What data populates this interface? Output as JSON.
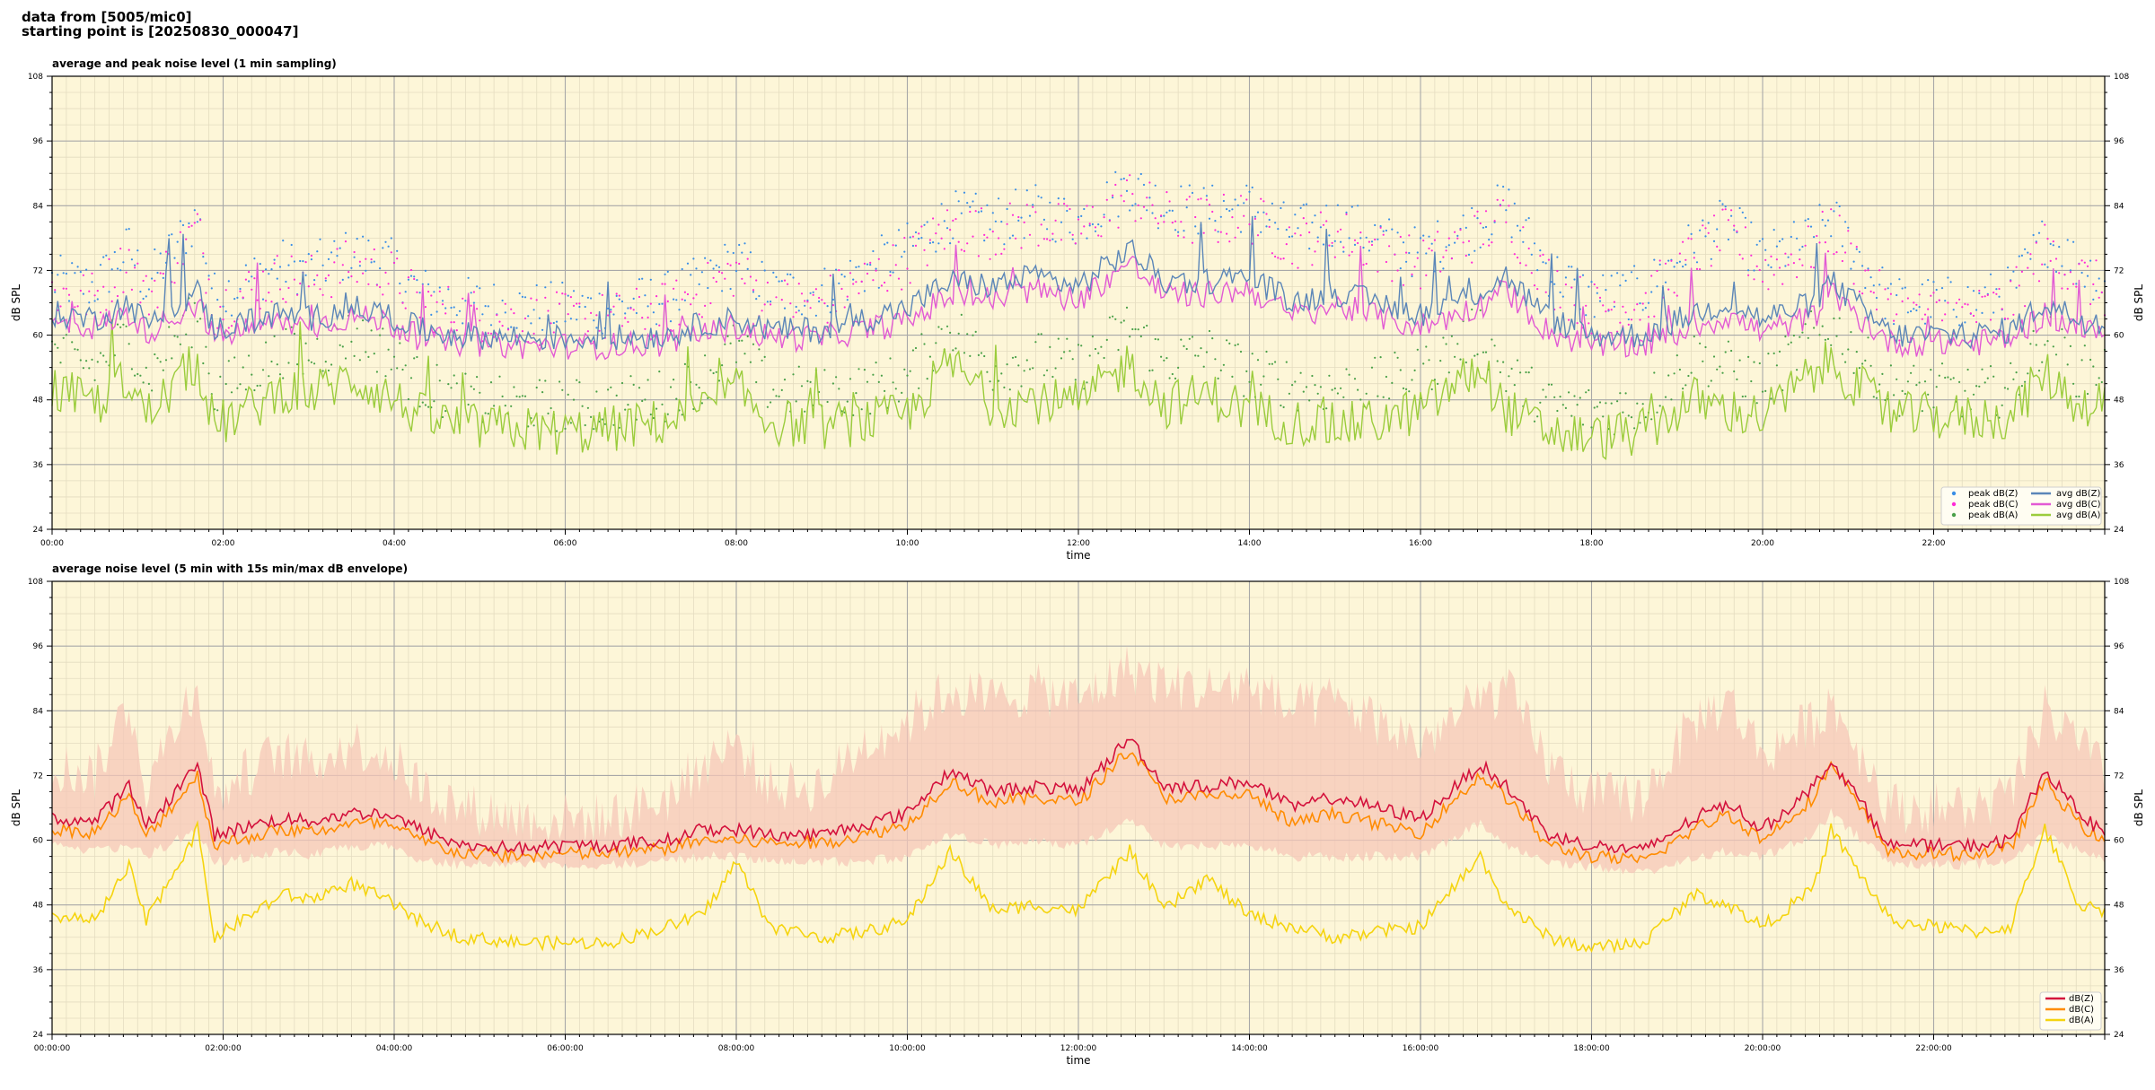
{
  "header": {
    "line1": "data from [5005/mic0]",
    "line2": "starting point is [20250830_000047]"
  },
  "colors": {
    "plot_bg": "#fdf6d8",
    "grid_major": "#a8a8a8",
    "grid_minor": "#e4dcc0",
    "avg_z": "#5b86b8",
    "avg_c": "#e25ad4",
    "avg_a": "#9bcc3c",
    "peak_z": "#3a8ee6",
    "peak_c": "#ff2bd6",
    "peak_a": "#4aa048",
    "z": "#d4113c",
    "c": "#ff8c00",
    "a": "#f5d40f",
    "envelope": "#f6c7b8"
  },
  "chart_data": [
    {
      "type": "line",
      "title": "average and peak noise level (1 min sampling)",
      "xlabel": "time",
      "ylabel": "dB SPL",
      "xlim": [
        "00:00",
        "24:00"
      ],
      "ylim": [
        24,
        108
      ],
      "yticks": [
        24,
        36,
        48,
        60,
        72,
        84,
        96,
        108
      ],
      "xticks": [
        "00:00",
        "02:00",
        "04:00",
        "06:00",
        "08:00",
        "10:00",
        "12:00",
        "14:00",
        "16:00",
        "18:00",
        "20:00",
        "22:00"
      ],
      "grid": true,
      "legend_position": "bottom-right",
      "legend": [
        "peak dB(Z)",
        "peak dB(C)",
        "peak dB(A)",
        "avg dB(Z)",
        "avg dB(C)",
        "avg dB(A)"
      ],
      "x_hours": [
        0,
        0.5,
        0.9,
        1.1,
        1.7,
        1.9,
        2.4,
        2.7,
        3.0,
        3.5,
        3.9,
        4.3,
        4.8,
        5.5,
        6.0,
        6.5,
        7.2,
        7.6,
        8.0,
        8.4,
        9.0,
        9.5,
        10.0,
        10.5,
        11.0,
        11.5,
        12.0,
        12.6,
        13.0,
        13.5,
        14.0,
        14.5,
        15.0,
        15.5,
        16.0,
        16.7,
        17.0,
        17.5,
        18.0,
        18.6,
        19.2,
        19.6,
        20.0,
        20.6,
        20.8,
        21.5,
        22.0,
        22.5,
        22.9,
        23.3,
        23.7,
        24.0
      ],
      "series": [
        {
          "name": "avg dB(Z)",
          "values": [
            64,
            63,
            66,
            62,
            68,
            61,
            63,
            64,
            63,
            65,
            64,
            61,
            60,
            59.5,
            59.5,
            59.5,
            60,
            62,
            63,
            61,
            61,
            63,
            65,
            70,
            69,
            71,
            69,
            76,
            70,
            70,
            71,
            66,
            68,
            66,
            64,
            68,
            71,
            63,
            60,
            60,
            64,
            66,
            63,
            66,
            70,
            60,
            60,
            60,
            61,
            66,
            63,
            62
          ]
        },
        {
          "name": "avg dB(C)",
          "values": [
            62,
            61.5,
            64,
            60.5,
            66,
            59.5,
            61.5,
            62.5,
            61.5,
            63.5,
            62.5,
            59.5,
            58.5,
            58,
            58,
            58,
            58.5,
            60.5,
            61.5,
            59.5,
            59.5,
            61,
            62.5,
            67.5,
            66.5,
            68.5,
            66.5,
            73.5,
            67.5,
            67.5,
            68.5,
            63.5,
            65.5,
            63.5,
            61.5,
            65.5,
            68.5,
            60.5,
            58,
            58,
            61.5,
            63.5,
            60.5,
            63.5,
            67.5,
            58.5,
            58.5,
            58.5,
            59.5,
            64,
            61,
            60
          ]
        },
        {
          "name": "avg dB(A)",
          "values": [
            50,
            47,
            52,
            45,
            55,
            43,
            47,
            50,
            49,
            52,
            49,
            45,
            43,
            42.5,
            42,
            42.5,
            44,
            46,
            50,
            44,
            43,
            44,
            45,
            55,
            47,
            48,
            47,
            55,
            47,
            49,
            46,
            44,
            43,
            44,
            46,
            54,
            46,
            42,
            41,
            42,
            48,
            46,
            45,
            53,
            55,
            45,
            45,
            44.5,
            45,
            53,
            47,
            48
          ]
        },
        {
          "name": "peak dB(Z)",
          "values": [
            68,
            67,
            74,
            67,
            80,
            65,
            69,
            71,
            70,
            73,
            72,
            66,
            64,
            63,
            63,
            63,
            65,
            68,
            72,
            66,
            66,
            70,
            74,
            80,
            79,
            81,
            79,
            86,
            82,
            81,
            82,
            77,
            79,
            76,
            73,
            79,
            82,
            70,
            65,
            66,
            75,
            79,
            72,
            76,
            80,
            64,
            64,
            64,
            66,
            76,
            71,
            68
          ]
        },
        {
          "name": "peak dB(C)",
          "values": [
            66,
            65,
            72,
            65,
            78,
            63,
            67,
            69,
            68,
            71,
            70,
            64,
            62,
            61,
            61,
            61,
            63,
            66,
            70,
            64,
            64,
            68,
            72,
            78,
            77,
            79,
            77,
            84,
            80,
            79,
            80,
            75,
            77,
            74,
            71,
            77,
            80,
            68,
            63,
            64,
            73,
            77,
            70,
            74,
            78,
            62,
            62,
            62,
            64,
            74,
            69,
            66
          ]
        },
        {
          "name": "peak dB(A)",
          "values": [
            55,
            52,
            58,
            50,
            62,
            47,
            52,
            55,
            54,
            58,
            55,
            49,
            46,
            45,
            45,
            45,
            47,
            50,
            56,
            48,
            47,
            48,
            50,
            60,
            52,
            54,
            52,
            60,
            53,
            55,
            51,
            49,
            48,
            49,
            51,
            59,
            51,
            45,
            44,
            45,
            54,
            52,
            49,
            58,
            60,
            48,
            48,
            47,
            48,
            58,
            51,
            52
          ]
        }
      ]
    },
    {
      "type": "line",
      "title": "average noise level (5 min with 15s min/max dB envelope)",
      "xlabel": "time",
      "ylabel": "dB SPL",
      "xlim": [
        "00:00:00",
        "24:00:00"
      ],
      "ylim": [
        24,
        108
      ],
      "yticks": [
        24,
        36,
        48,
        60,
        72,
        84,
        96,
        108
      ],
      "xticks": [
        "00:00:00",
        "02:00:00",
        "04:00:00",
        "06:00:00",
        "08:00:00",
        "10:00:00",
        "12:00:00",
        "14:00:00",
        "16:00:00",
        "18:00:00",
        "20:00:00",
        "22:00:00"
      ],
      "grid": true,
      "legend_position": "bottom-right",
      "legend": [
        "dB(Z)",
        "dB(C)",
        "dB(A)"
      ],
      "x_hours": [
        0,
        0.5,
        0.9,
        1.1,
        1.7,
        1.9,
        2.4,
        2.7,
        3.0,
        3.5,
        3.9,
        4.3,
        4.8,
        5.5,
        6.0,
        6.5,
        7.2,
        7.6,
        8.0,
        8.4,
        9.0,
        9.5,
        10.0,
        10.5,
        11.0,
        11.5,
        12.0,
        12.6,
        13.0,
        13.5,
        14.0,
        14.5,
        15.0,
        15.5,
        16.0,
        16.7,
        17.0,
        17.5,
        18.0,
        18.6,
        19.2,
        19.6,
        20.0,
        20.6,
        20.8,
        21.5,
        22.0,
        22.5,
        22.9,
        23.3,
        23.7,
        24.0
      ],
      "series": [
        {
          "name": "dB(Z)",
          "values": [
            64,
            63.5,
            70,
            62.5,
            74,
            61,
            63,
            64,
            63.5,
            65,
            65,
            62,
            59,
            58.5,
            59,
            59,
            60,
            62,
            62,
            61,
            61,
            63,
            65,
            73,
            69,
            70,
            69,
            79,
            70,
            70,
            71,
            66,
            68,
            66,
            64,
            74,
            70,
            61,
            59,
            58,
            64,
            67,
            62,
            70,
            75,
            59,
            59,
            59,
            60,
            73,
            65,
            61
          ]
        },
        {
          "name": "dB(C)",
          "values": [
            62,
            61.5,
            68,
            60.5,
            72,
            59,
            61,
            62,
            61.5,
            63,
            63,
            60,
            57.5,
            57,
            57.5,
            57.5,
            58.5,
            60,
            60,
            59.5,
            59.5,
            61,
            63,
            71,
            67,
            68,
            67,
            77,
            68,
            68,
            68.5,
            63,
            65,
            63,
            61.5,
            72,
            68,
            59,
            57,
            56,
            62,
            65,
            60,
            68,
            74,
            57.5,
            57.5,
            57.5,
            58.5,
            71,
            63,
            59.5
          ]
        },
        {
          "name": "dB(A)",
          "values": [
            46,
            45,
            55,
            45,
            62,
            42,
            47,
            50,
            49,
            52,
            49,
            45,
            42,
            41,
            41,
            41,
            44,
            46,
            56,
            44,
            42,
            43,
            45,
            58,
            47,
            48,
            47,
            58,
            47,
            53,
            46,
            44,
            42,
            43,
            44,
            57,
            48,
            42,
            40,
            41,
            50,
            48,
            44,
            51,
            62,
            45,
            44,
            43,
            44,
            62,
            48,
            47
          ]
        },
        {
          "name": "envelope",
          "values": [
            72,
            70,
            84,
            68,
            88,
            66,
            72,
            74,
            72,
            76,
            74,
            68,
            64,
            62,
            62,
            62,
            66,
            72,
            76,
            68,
            68,
            76,
            80,
            86,
            84,
            86,
            84,
            90,
            87,
            86,
            87,
            82,
            84,
            80,
            76,
            84,
            86,
            72,
            66,
            66,
            80,
            84,
            74,
            80,
            84,
            64,
            64,
            64,
            66,
            82,
            76,
            70
          ],
          "min_values": [
            60,
            59,
            60,
            58,
            63,
            57,
            58,
            59,
            58,
            60,
            60,
            57,
            56.5,
            56.5,
            56.5,
            56.5,
            57,
            58,
            58,
            57.5,
            57,
            57,
            58,
            62,
            60,
            61,
            60,
            65,
            60,
            60,
            60,
            58,
            58,
            58,
            58,
            64,
            60,
            57,
            56,
            55,
            58,
            59,
            58,
            62,
            66,
            56.5,
            56.5,
            56.5,
            57,
            62,
            59,
            57.5
          ]
        }
      ]
    }
  ]
}
